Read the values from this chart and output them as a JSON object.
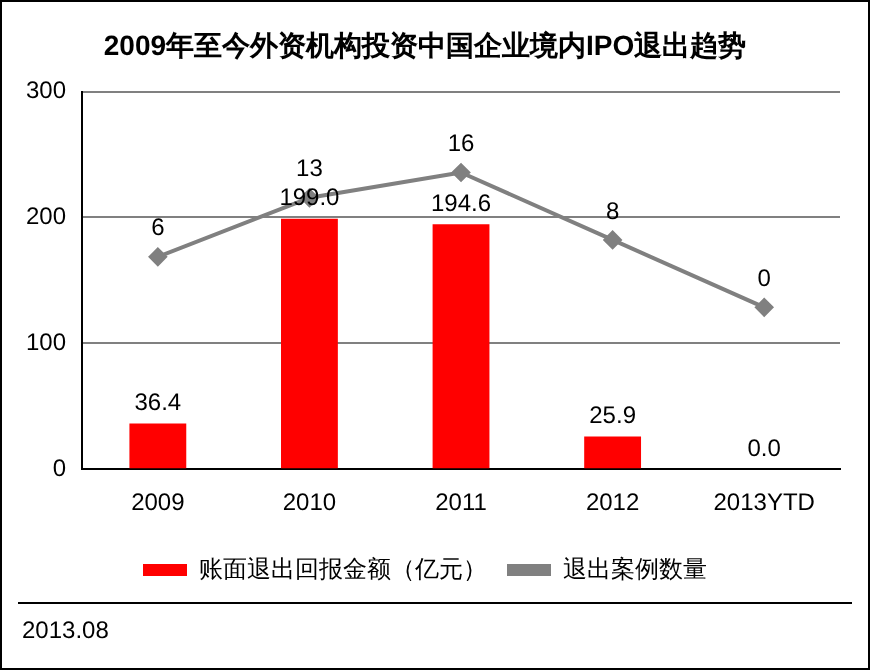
{
  "chart_data": {
    "type": "bar",
    "title": "2009年至今外资机构投资中国企业境内IPO退出趋势",
    "categories": [
      "2009",
      "2010",
      "2011",
      "2012",
      "2013YTD"
    ],
    "series": [
      {
        "name": "账面退出回报金额（亿元）",
        "color": "#ff0000",
        "values": [
          36.4,
          199.0,
          194.6,
          25.9,
          0.0
        ],
        "value_labels": [
          "36.4",
          "199.0",
          "194.6",
          "25.9",
          "0.0"
        ]
      },
      {
        "name": "退出案例数量",
        "type": "line",
        "axis": "y2",
        "color": "#808080",
        "marker": "diamond",
        "values": [
          6,
          13,
          16,
          8,
          0
        ],
        "value_labels": [
          "6",
          "13",
          "16",
          "8",
          "0"
        ]
      }
    ],
    "ylim": [
      0,
      300
    ],
    "yticks": [
      0,
      100,
      200,
      300
    ],
    "grid": "y",
    "legend": "bottom",
    "annotations": [
      "2013.08"
    ]
  }
}
